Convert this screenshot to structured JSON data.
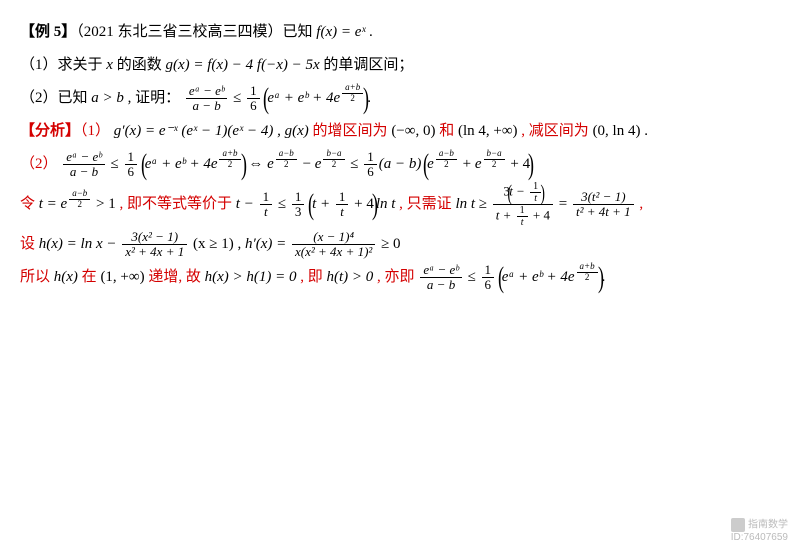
{
  "title_bold": "【例 5】",
  "title_rest": "（2021 东北三省三校高三四模）已知 ",
  "fx": "f(x) = eˣ .",
  "q1_label": "（1）",
  "q1_text1": "求关于 ",
  "q1_x": "x",
  "q1_text2": " 的函数 ",
  "q1_gx": "g(x) = f(x) − 4 f(−x) − 5x",
  "q1_text3": " 的单调区间；",
  "q2_label": "（2）",
  "q2_text1": "已知 ",
  "q2_ab": "a > b",
  "q2_text2": " , 证明：",
  "q2_lhs_num": "eᵃ − eᵇ",
  "q2_lhs_den": "a − b",
  "q2_le": " ≤ ",
  "q2_frac16_n": "1",
  "q2_frac16_d": "6",
  "q2_inside": "eᵃ + eᵇ + 4e",
  "q2_exp_num": "a+b",
  "q2_exp_den": "2",
  "q2_period": ".",
  "ana_label": "【分析】",
  "ana1_label": "（1）",
  "ana1_g": "g′(x) = e⁻ˣ (eˣ − 1)(eˣ − 4) , g(x)",
  "ana1_red1": " 的增区间为 ",
  "ana1_int1": "(−∞, 0)",
  "ana1_red2": " 和 ",
  "ana1_int2": "(ln 4, +∞)",
  "ana1_red3": " , 减区间为 ",
  "ana1_int3": "(0, ln 4) .",
  "ana2_label": "（2）",
  "eq2_iff": " ⇔ ",
  "eq2_exp_ab_n": "a−b",
  "eq2_exp_ba_n": "b−a",
  "eq2_two": "2",
  "eq2_minus": " − ",
  "eq2_le": " ≤ ",
  "eq2_16n": "1",
  "eq2_16d": "6",
  "eq2_abm": "(a − b)",
  "eq2_plus": " + ",
  "eq2_plus4": " + 4",
  "ln3_red1": "令 ",
  "ln3_teq": "t = e",
  "ln3_gt1": " > 1",
  "ln3_red2": " , 即不等式等价于 ",
  "ln3_t1": "t − ",
  "ln3_1n": "1",
  "ln3_td": "t",
  "ln3_le": " ≤ ",
  "ln3_13n": "1",
  "ln3_13d": "3",
  "ln3_inside": "t + ",
  "ln3_p4": " + 4",
  "ln3_lnt": "ln t",
  "ln3_red3": " , 只需证 ",
  "ln3_lnt2": "ln t ≥ ",
  "ln3_big_num_3": "3",
  "ln3_big_den_p4": "t + ",
  "ln3_eq": " = ",
  "ln3_f2_num": "3(t² − 1)",
  "ln3_f2_den": "t² + 4t + 1",
  "ln3_comma": " ,",
  "ln4_red1": "设 ",
  "ln4_hx": "h(x) = ln x − ",
  "ln4_f_num": "3(x² − 1)",
  "ln4_f_den": "x² + 4x + 1",
  "ln4_dom": " (x ≥ 1) , ",
  "ln4_hpx": "h′(x) = ",
  "ln4_f2_num": "(x − 1)⁴",
  "ln4_f2_den": "x(x² + 4x + 1)²",
  "ln4_ge": " ≥ 0",
  "ln5_red1": "所以 ",
  "ln5_hx": "h(x)",
  "ln5_red2": " 在 ",
  "ln5_int": "(1, +∞)",
  "ln5_red3": " 递增, 故 ",
  "ln5_hgh": "h(x) > h(1) = 0",
  "ln5_red4": " , 即 ",
  "ln5_ht": "h(t) > 0",
  "ln5_red5": " , 亦即 ",
  "wm_name": "指南数学",
  "wm_id": "ID:76407659"
}
